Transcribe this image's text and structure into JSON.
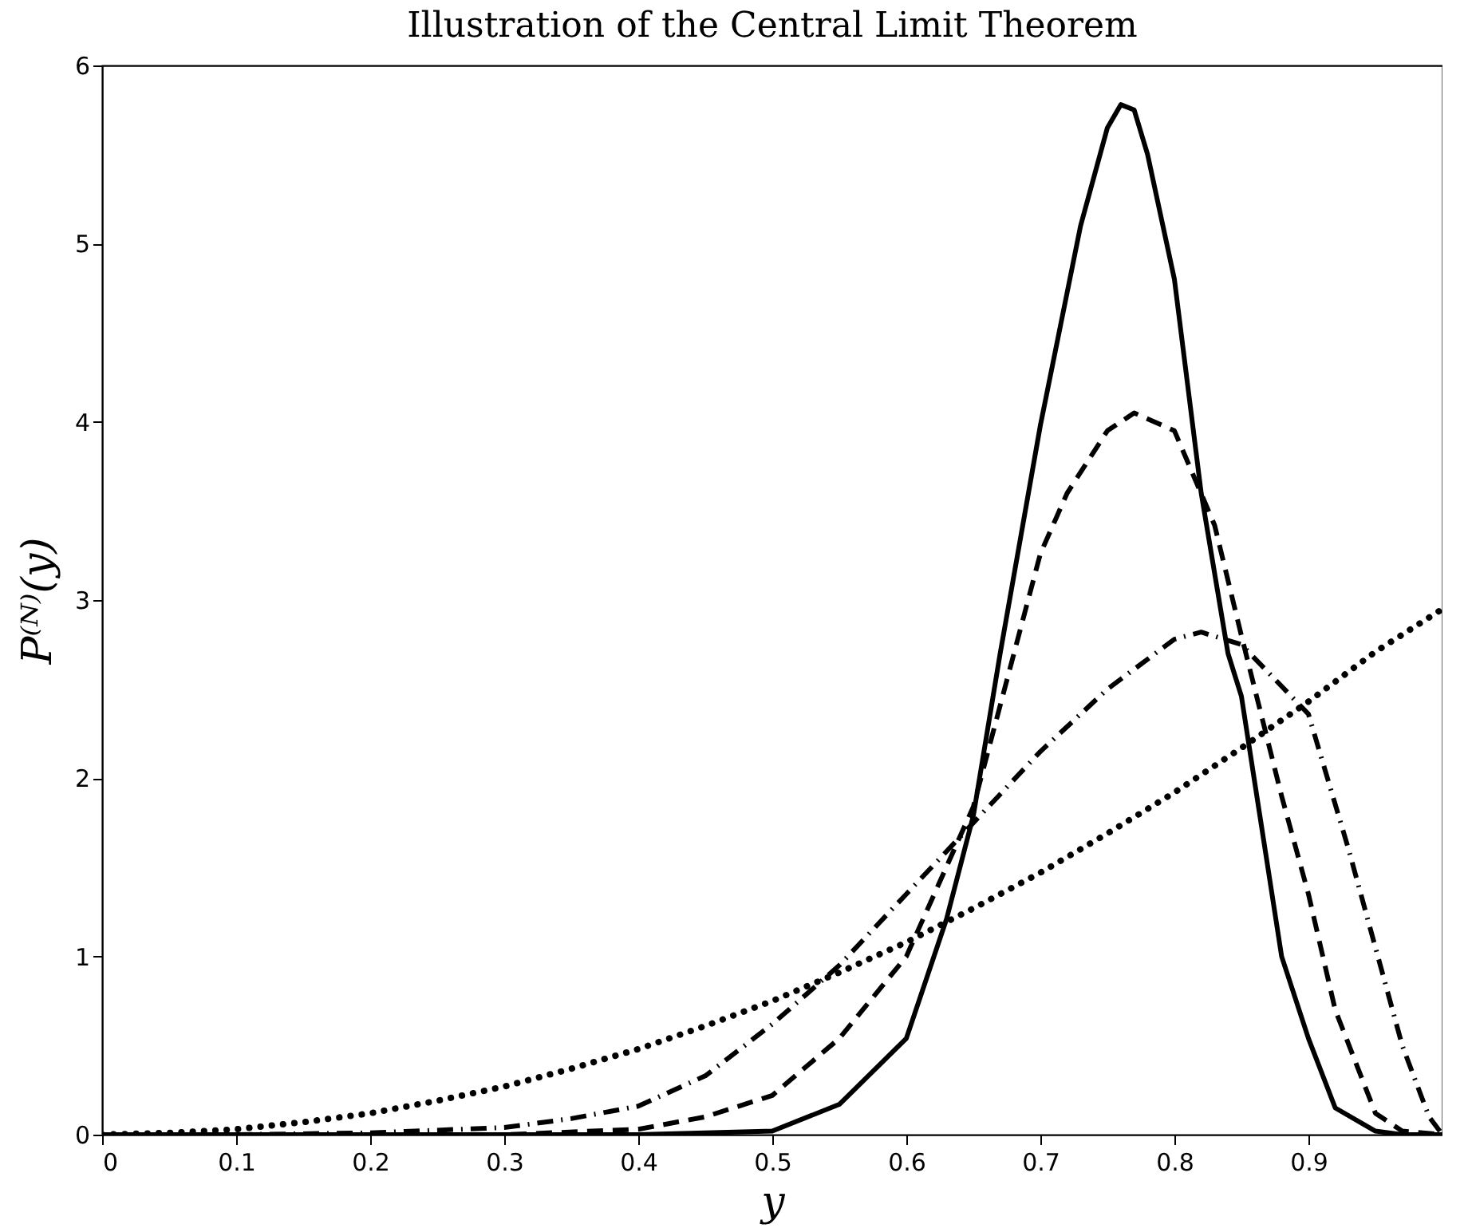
{
  "chart_data": {
    "type": "line",
    "title": "Illustration of the Central Limit Theorem",
    "xlabel": "y",
    "ylabel": "P⁽ᴺ⁾(y)",
    "xlim": [
      0,
      1
    ],
    "ylim": [
      0,
      6
    ],
    "xticks": [
      0,
      0.1,
      0.2,
      0.3,
      0.4,
      0.5,
      0.6,
      0.7,
      0.8,
      0.9
    ],
    "yticks": [
      0,
      1,
      2,
      3,
      4,
      5,
      6
    ],
    "grid": false,
    "series": [
      {
        "color": "#000000",
        "line_style": "dotted",
        "x": [
          0,
          0.05,
          0.1,
          0.15,
          0.2,
          0.25,
          0.3,
          0.35,
          0.4,
          0.45,
          0.5,
          0.55,
          0.6,
          0.65,
          0.7,
          0.75,
          0.8,
          0.85,
          0.9,
          0.95,
          1
        ],
        "values": [
          0,
          0.01,
          0.03,
          0.07,
          0.12,
          0.19,
          0.27,
          0.37,
          0.48,
          0.61,
          0.75,
          0.91,
          1.08,
          1.27,
          1.47,
          1.69,
          1.92,
          2.17,
          2.43,
          2.71,
          2.95
        ]
      },
      {
        "color": "#000000",
        "line_style": "dashdot",
        "x": [
          0,
          0.1,
          0.2,
          0.3,
          0.35,
          0.4,
          0.45,
          0.5,
          0.55,
          0.6,
          0.65,
          0.7,
          0.75,
          0.8,
          0.82,
          0.85,
          0.9,
          0.93,
          0.95,
          0.97,
          0.99,
          1
        ],
        "values": [
          0,
          0,
          0.01,
          0.04,
          0.09,
          0.16,
          0.33,
          0.62,
          0.95,
          1.35,
          1.75,
          2.15,
          2.5,
          2.78,
          2.82,
          2.75,
          2.36,
          1.6,
          1.05,
          0.5,
          0.1,
          0
        ]
      },
      {
        "color": "#000000",
        "line_style": "dashed",
        "x": [
          0,
          0.2,
          0.3,
          0.4,
          0.45,
          0.5,
          0.55,
          0.6,
          0.65,
          0.7,
          0.72,
          0.75,
          0.77,
          0.8,
          0.83,
          0.85,
          0.88,
          0.9,
          0.92,
          0.95,
          0.97,
          1
        ],
        "values": [
          0,
          0,
          0,
          0.03,
          0.1,
          0.22,
          0.54,
          1.0,
          1.84,
          3.26,
          3.6,
          3.95,
          4.05,
          3.95,
          3.42,
          2.8,
          1.9,
          1.35,
          0.7,
          0.12,
          0.02,
          0
        ]
      },
      {
        "color": "#000000",
        "line_style": "solid",
        "x": [
          0,
          0.3,
          0.4,
          0.5,
          0.55,
          0.6,
          0.63,
          0.65,
          0.67,
          0.7,
          0.73,
          0.75,
          0.76,
          0.77,
          0.78,
          0.8,
          0.82,
          0.84,
          0.85,
          0.88,
          0.9,
          0.92,
          0.95,
          0.97,
          1
        ],
        "values": [
          0,
          0,
          0,
          0.02,
          0.17,
          0.54,
          1.21,
          1.79,
          2.7,
          3.98,
          5.1,
          5.65,
          5.78,
          5.75,
          5.5,
          4.8,
          3.6,
          2.7,
          2.46,
          1.0,
          0.54,
          0.15,
          0.02,
          0,
          0
        ]
      }
    ]
  }
}
